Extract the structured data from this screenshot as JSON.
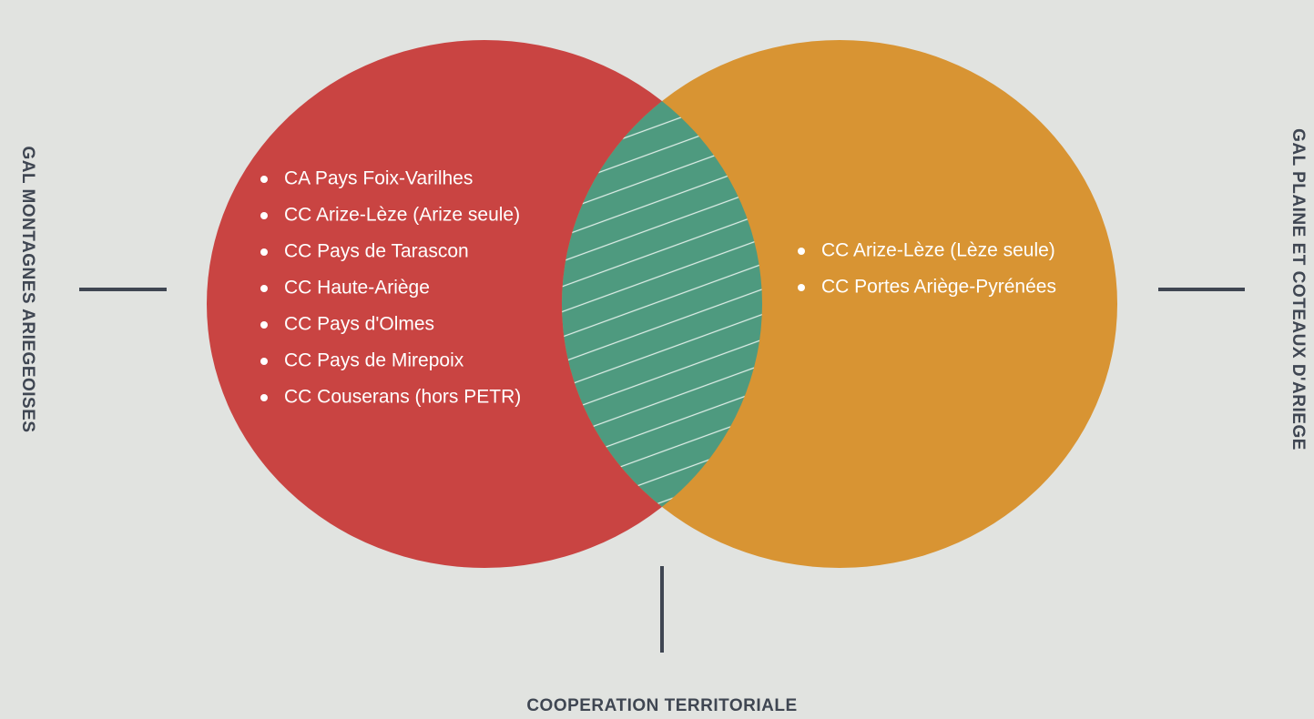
{
  "left_group": {
    "label": "GAL MONTAGNES ARIEGEOISES",
    "items": [
      "CA Pays Foix-Varilhes",
      "CC Arize-Lèze (Arize seule)",
      "CC Pays de Tarascon",
      "CC Haute-Ariège",
      "CC Pays d'Olmes",
      "CC Pays de Mirepoix",
      "CC Couserans (hors PETR)"
    ]
  },
  "right_group": {
    "label": "GAL PLAINE ET COTEAUX D'ARIEGE",
    "items": [
      "CC Arize-Lèze (Lèze seule)",
      "CC Portes Ariège-Pyrénées"
    ]
  },
  "intersection": {
    "label": "COOPERATION TERRITORIALE"
  }
}
